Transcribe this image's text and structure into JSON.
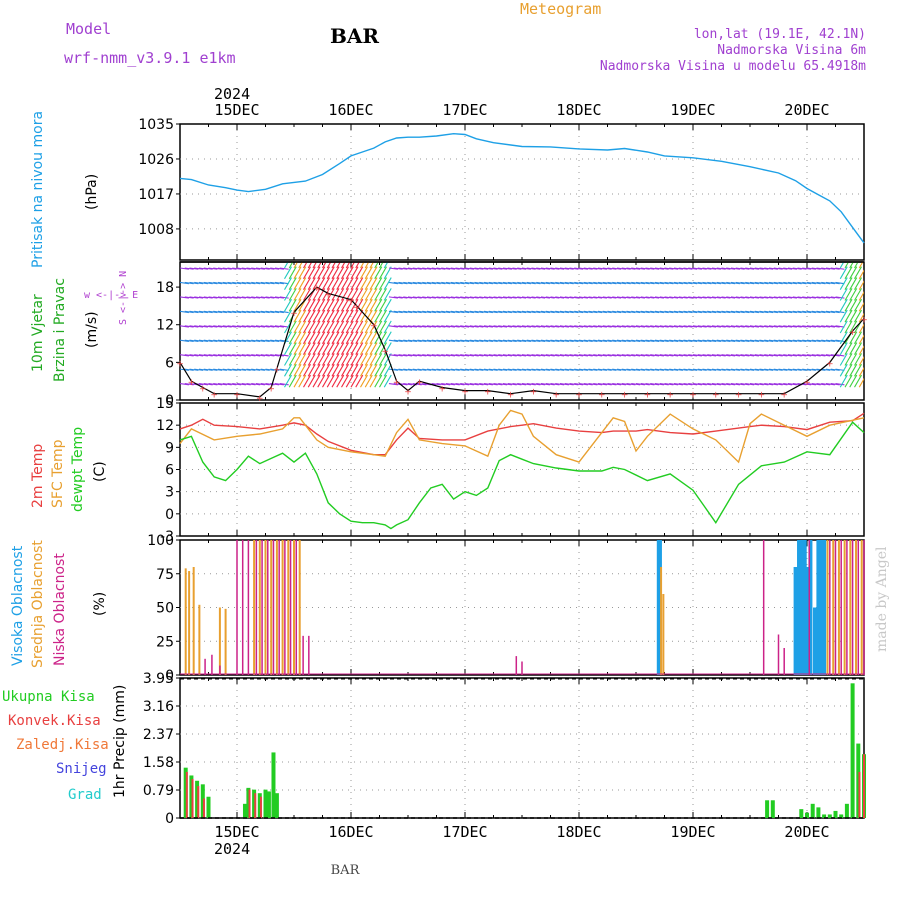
{
  "header": {
    "model_label": "Model",
    "model_name": "wrf-nmm_v3.9.1  e1km",
    "station": "BAR",
    "meteogram_label": "Meteogram",
    "lonlat": "lon,lat (19.1E, 42.1N)",
    "elevation": "Nadmorska Visina 6m",
    "model_elevation": "Nadmorska Visina u modelu 65.4918m",
    "footer_station": "BAR",
    "watermark": "made by Angel"
  },
  "colors": {
    "pressure": "#1ea0e6",
    "temp2m": "#e84040",
    "sfc_temp": "#e8a030",
    "dewpt": "#22cc22",
    "cloud_high": "#1ea0e6",
    "cloud_mid": "#e8a030",
    "cloud_low": "#cc2288",
    "rain_total": "#22cc22",
    "rain_conv": "#e84040",
    "rain_frz": "#f07838",
    "snow": "#4444dd",
    "hail": "#22cccc",
    "wind_label": "#22aa22",
    "wind_dir": "#b040d0",
    "text_purple": "#a040d0",
    "text_orange": "#e8a030"
  },
  "time_axis": {
    "year": "2024",
    "labels": [
      "15DEC",
      "16DEC",
      "17DEC",
      "18DEC",
      "19DEC",
      "20DEC"
    ],
    "start_day": 14.5,
    "end_day": 20.5
  },
  "chart_data": [
    {
      "type": "line",
      "panel": "pressure",
      "ylabel": "Pritisak na nivou mora",
      "unit": "(hPa)",
      "yticks": [
        "1035",
        "1026",
        "1017",
        "1008"
      ],
      "ytick_values": [
        1035,
        1026,
        1017,
        1008
      ],
      "ylim": [
        1000,
        1035
      ],
      "grid": true,
      "series": [
        {
          "x": [
            14.5,
            14.6,
            14.75,
            14.9,
            15.0,
            15.1,
            15.25,
            15.4,
            15.6,
            15.75,
            15.9,
            16.0,
            16.1,
            16.2,
            16.3,
            16.4,
            16.5,
            16.6,
            16.75,
            16.9,
            17.0,
            17.1,
            17.25,
            17.5,
            17.75,
            18.0,
            18.25,
            18.4,
            18.6,
            18.75,
            19.0,
            19.25,
            19.5,
            19.75,
            19.9,
            20.0,
            20.1,
            20.2,
            20.3,
            20.4,
            20.5
          ],
          "values": [
            1021,
            1020.7,
            1019.3,
            1018.6,
            1018,
            1017.6,
            1018.2,
            1019.6,
            1020.3,
            1022,
            1024.8,
            1026.8,
            1027.8,
            1028.8,
            1030.4,
            1031.4,
            1031.6,
            1031.6,
            1031.9,
            1032.5,
            1032.3,
            1031.2,
            1030.2,
            1029.2,
            1029.1,
            1028.6,
            1028.3,
            1028.7,
            1027.8,
            1026.8,
            1026.3,
            1025.4,
            1024,
            1022.4,
            1020.4,
            1018.4,
            1016.8,
            1015.2,
            1012.4,
            1008.4,
            1004.4
          ]
        }
      ]
    },
    {
      "type": "line",
      "panel": "wind",
      "ylabel": "10m Vjetar Brzina i Pravac",
      "unit": "(m/s)",
      "yticks": [
        "18",
        "12",
        "6",
        "0"
      ],
      "ytick_values": [
        18,
        12,
        6,
        0
      ],
      "ylim": [
        0,
        22
      ],
      "direction_legend": "w <-|-> E",
      "direction_legend_v": "S <-|-> N",
      "series": [
        {
          "name": "speed",
          "x": [
            14.5,
            14.6,
            14.7,
            14.8,
            15.0,
            15.2,
            15.3,
            15.35,
            15.5,
            15.7,
            15.8,
            16.0,
            16.05,
            16.2,
            16.3,
            16.4,
            16.5,
            16.6,
            16.8,
            17.0,
            17.2,
            17.4,
            17.6,
            17.8,
            18.0,
            18.2,
            18.4,
            18.6,
            18.8,
            19.0,
            19.2,
            19.4,
            19.6,
            19.8,
            20.0,
            20.2,
            20.4,
            20.5
          ],
          "values": [
            6,
            3,
            2,
            1,
            1,
            0.5,
            2,
            5,
            14,
            18,
            17,
            16,
            15,
            12,
            8,
            3,
            1.5,
            3,
            2,
            1.5,
            1.5,
            1,
            1.5,
            1,
            1,
            1,
            1,
            1,
            1,
            1,
            1,
            1,
            1,
            1,
            3,
            6,
            11,
            13
          ]
        }
      ]
    },
    {
      "type": "line",
      "panel": "temperature",
      "ylabel": "2m Temp",
      "ylabel2": "SFC Temp",
      "ylabel3": "dewpt Temp",
      "unit": "(C)",
      "yticks": [
        "15",
        "12",
        "9",
        "6",
        "3",
        "0",
        "-3"
      ],
      "ytick_values": [
        15,
        12,
        9,
        6,
        3,
        0,
        -3
      ],
      "ylim": [
        -3,
        15
      ],
      "grid": true,
      "series": [
        {
          "name": "2m Temp",
          "x": [
            14.5,
            14.6,
            14.7,
            14.8,
            15.0,
            15.2,
            15.4,
            15.5,
            15.6,
            15.7,
            15.8,
            16.0,
            16.2,
            16.3,
            16.4,
            16.5,
            16.6,
            16.8,
            17.0,
            17.2,
            17.4,
            17.5,
            17.6,
            17.8,
            18.0,
            18.2,
            18.3,
            18.5,
            18.6,
            18.8,
            19.0,
            19.2,
            19.4,
            19.5,
            19.6,
            19.8,
            20.0,
            20.2,
            20.4,
            20.5
          ],
          "values": [
            11.5,
            12,
            12.8,
            12,
            11.8,
            11.5,
            12,
            12.3,
            12,
            10.8,
            9.8,
            8.6,
            8,
            8,
            10,
            11.6,
            10.2,
            10,
            10,
            11.2,
            11.8,
            12,
            12.2,
            11.6,
            11.2,
            11,
            11.2,
            11.2,
            11.4,
            11,
            10.8,
            11.2,
            11.6,
            11.8,
            12,
            11.8,
            11.4,
            12.4,
            12.6,
            13.6
          ]
        },
        {
          "name": "SFC Temp",
          "x": [
            14.5,
            14.6,
            14.8,
            15.0,
            15.2,
            15.4,
            15.5,
            15.55,
            15.6,
            15.7,
            15.8,
            16.0,
            16.2,
            16.3,
            16.4,
            16.5,
            16.6,
            16.8,
            17.0,
            17.2,
            17.3,
            17.4,
            17.5,
            17.6,
            17.8,
            18.0,
            18.2,
            18.3,
            18.4,
            18.5,
            18.6,
            18.8,
            19.0,
            19.2,
            19.4,
            19.5,
            19.6,
            19.8,
            20.0,
            20.2,
            20.5
          ],
          "values": [
            9.5,
            11.5,
            10,
            10.5,
            10.8,
            11.5,
            13,
            13,
            12,
            10,
            9,
            8.4,
            8,
            7.8,
            11,
            12.8,
            10,
            9.5,
            9.2,
            7.8,
            12,
            14,
            13.5,
            10.5,
            8,
            7,
            11,
            13,
            12.5,
            8.5,
            10.5,
            13.5,
            11.5,
            10,
            7,
            12.2,
            13.5,
            12,
            10.5,
            12,
            13
          ]
        },
        {
          "name": "dewpt Temp",
          "x": [
            14.5,
            14.6,
            14.7,
            14.8,
            14.9,
            15.0,
            15.1,
            15.2,
            15.3,
            15.4,
            15.5,
            15.6,
            15.7,
            15.8,
            15.9,
            16.0,
            16.1,
            16.2,
            16.3,
            16.35,
            16.4,
            16.5,
            16.6,
            16.7,
            16.8,
            16.9,
            17.0,
            17.1,
            17.2,
            17.3,
            17.4,
            17.5,
            17.6,
            17.8,
            18.0,
            18.2,
            18.3,
            18.4,
            18.6,
            18.8,
            19.0,
            19.1,
            19.2,
            19.3,
            19.4,
            19.6,
            19.8,
            20.0,
            20.2,
            20.4,
            20.5
          ],
          "values": [
            10,
            10.5,
            7,
            5,
            4.5,
            6,
            7.8,
            6.8,
            7.5,
            8.2,
            7,
            8.2,
            5.4,
            1.5,
            0,
            -1,
            -1.2,
            -1.2,
            -1.5,
            -2,
            -1.5,
            -0.8,
            1.5,
            3.5,
            4,
            2,
            3,
            2.5,
            3.5,
            7.2,
            8,
            7.4,
            6.8,
            6.2,
            5.8,
            5.8,
            6.3,
            6,
            4.5,
            5.4,
            3.2,
            1,
            -1.2,
            1.4,
            4,
            6.5,
            7,
            8.4,
            8,
            12.4,
            11
          ]
        }
      ]
    },
    {
      "type": "bar",
      "panel": "clouds",
      "ylabel": "Visoka Oblacnost",
      "ylabel2": "Srednja Oblacnost",
      "ylabel3": "Niska Oblacnost",
      "unit": "(%)",
      "yticks": [
        "100",
        "75",
        "50",
        "25",
        "0"
      ],
      "ytick_values": [
        100,
        75,
        50,
        25,
        0
      ],
      "ylim": [
        0,
        100
      ],
      "grid": true,
      "series": [
        {
          "name": "Visoka Oblacnost",
          "x": [
            18.7,
            18.71,
            19.9,
            19.93,
            19.96,
            19.98,
            20.0,
            20.03,
            20.07,
            20.1,
            20.13,
            20.15
          ],
          "values": [
            100,
            100,
            80,
            100,
            100,
            100,
            80,
            100,
            50,
            100,
            100,
            100
          ]
        },
        {
          "name": "Srednja Oblacnost",
          "x": [
            14.55,
            14.58,
            14.62,
            14.67,
            14.85,
            14.9,
            15.15,
            15.2,
            15.25,
            15.3,
            15.35,
            15.4,
            15.45,
            15.5,
            15.55,
            18.72,
            18.74,
            20.18,
            20.23,
            20.28,
            20.33,
            20.38,
            20.43,
            20.48
          ],
          "values": [
            79,
            77,
            80,
            52,
            50,
            49,
            100,
            100,
            100,
            100,
            100,
            100,
            100,
            100,
            100,
            80,
            60,
            100,
            100,
            100,
            100,
            100,
            100,
            100
          ]
        },
        {
          "name": "Niska Oblacnost",
          "x": [
            14.72,
            14.78,
            14.85,
            15.0,
            15.05,
            15.1,
            15.17,
            15.22,
            15.27,
            15.32,
            15.37,
            15.42,
            15.47,
            15.52,
            15.58,
            15.63,
            17.45,
            17.5,
            19.62,
            19.75,
            19.8,
            20.02,
            20.2,
            20.25,
            20.3,
            20.35,
            20.4,
            20.45,
            20.5
          ],
          "values": [
            12,
            15,
            7,
            100,
            100,
            100,
            100,
            100,
            100,
            100,
            100,
            100,
            100,
            100,
            29,
            29,
            14,
            10,
            100,
            30,
            20,
            100,
            100,
            100,
            100,
            100,
            100,
            100,
            100
          ]
        }
      ]
    },
    {
      "type": "bar",
      "panel": "precipitation",
      "legend": [
        "Ukupna Kisa",
        "Konvek.Kisa",
        "Zaledj.Kisa",
        "Snijeg",
        "Grad"
      ],
      "ylabel": "1hr Precip",
      "unit": "(mm)",
      "yticks": [
        "3.95",
        "3.16",
        "2.37",
        "1.58",
        "0.79",
        "0"
      ],
      "ytick_values": [
        3.95,
        3.16,
        2.37,
        1.58,
        0.79,
        0
      ],
      "ylim": [
        0,
        3.95
      ],
      "grid": true,
      "series": [
        {
          "name": "Ukupna Kisa",
          "x": [
            14.55,
            14.6,
            14.65,
            14.7,
            14.75,
            15.07,
            15.1,
            15.15,
            15.2,
            15.25,
            15.28,
            15.32,
            15.35,
            19.65,
            19.7,
            19.95,
            20.0,
            20.05,
            20.1,
            20.15,
            20.2,
            20.25,
            20.3,
            20.35,
            20.4,
            20.45,
            20.5
          ],
          "values": [
            1.42,
            1.2,
            1.05,
            0.95,
            0.6,
            0.4,
            0.85,
            0.8,
            0.7,
            0.8,
            0.75,
            1.85,
            0.7,
            0.5,
            0.5,
            0.25,
            0.15,
            0.4,
            0.3,
            0.1,
            0.1,
            0.2,
            0.1,
            0.4,
            3.8,
            2.1,
            1.8
          ]
        },
        {
          "name": "Konvek.Kisa",
          "x": [
            14.56,
            14.61,
            14.66,
            14.71,
            15.11,
            15.16,
            15.21,
            20.46,
            20.5
          ],
          "values": [
            1.3,
            1.1,
            0.9,
            0.55,
            0.8,
            0.7,
            0.6,
            1.3,
            1.8
          ]
        }
      ]
    }
  ]
}
